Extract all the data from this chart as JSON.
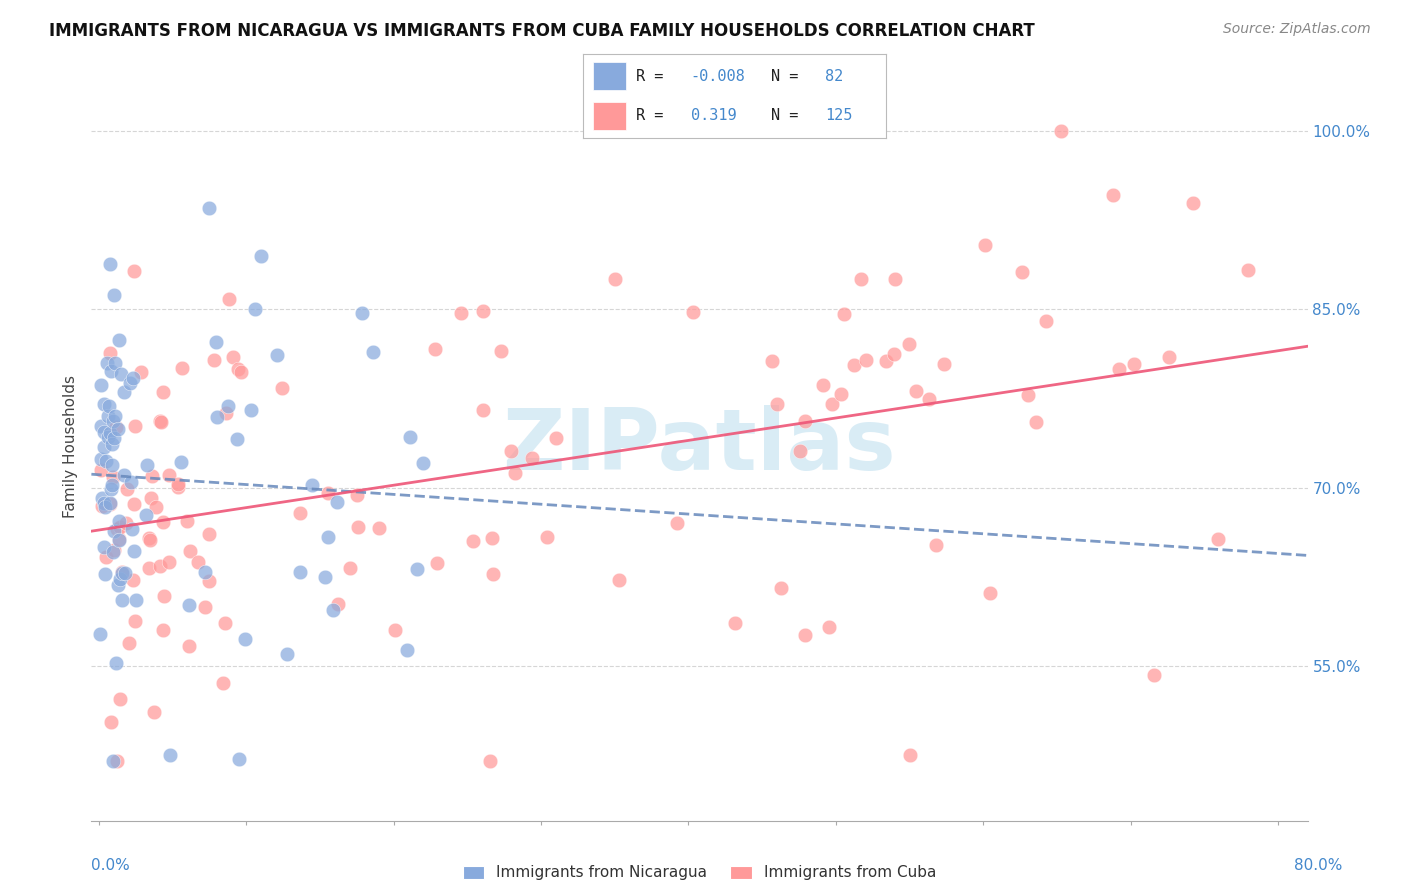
{
  "title": "IMMIGRANTS FROM NICARAGUA VS IMMIGRANTS FROM CUBA FAMILY HOUSEHOLDS CORRELATION CHART",
  "source_text": "Source: ZipAtlas.com",
  "ylabel": "Family Households",
  "ytick_labels": [
    "55.0%",
    "70.0%",
    "85.0%",
    "100.0%"
  ],
  "ytick_values": [
    0.55,
    0.7,
    0.85,
    1.0
  ],
  "xlim": [
    -0.005,
    0.82
  ],
  "ylim": [
    0.42,
    1.05
  ],
  "color_nicaragua": "#88AADD",
  "color_cuba": "#FF9999",
  "color_line_nicaragua": "#6688BB",
  "color_line_cuba": "#EE5577",
  "watermark_color": "#BBDDEE",
  "background_color": "#FFFFFF",
  "grid_color": "#CCCCCC",
  "title_fontsize": 12,
  "axis_label_fontsize": 11,
  "tick_fontsize": 11,
  "source_fontsize": 10
}
